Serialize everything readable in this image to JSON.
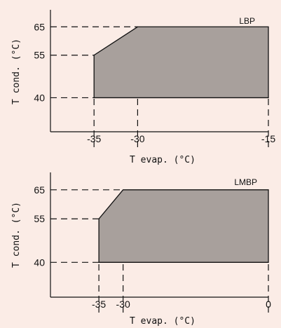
{
  "chart_data": [
    {
      "type": "area",
      "tag": "LBP",
      "xlabel": "T evap. (°C)",
      "ylabel": "T cond. (°C)",
      "x_ticks": [
        "-35",
        "-30",
        "-15"
      ],
      "y_ticks": [
        "40",
        "55",
        "65"
      ],
      "xlim": [
        -40,
        -15
      ],
      "ylim": [
        28,
        71
      ],
      "polygon": [
        {
          "x": -35,
          "y": 40
        },
        {
          "x": -35,
          "y": 55
        },
        {
          "x": -30,
          "y": 65
        },
        {
          "x": -15,
          "y": 65
        },
        {
          "x": -15,
          "y": 40
        }
      ],
      "fill_color": "#a8a09c"
    },
    {
      "type": "area",
      "tag": "LMBP",
      "xlabel": "T evap. (°C)",
      "ylabel": "T cond. (°C)",
      "x_ticks": [
        "-35",
        "-30",
        "0"
      ],
      "y_ticks": [
        "40",
        "55",
        "65"
      ],
      "xlim": [
        -45,
        0
      ],
      "ylim": [
        28,
        71
      ],
      "polygon": [
        {
          "x": -35,
          "y": 40
        },
        {
          "x": -35,
          "y": 55
        },
        {
          "x": -30,
          "y": 65
        },
        {
          "x": 0,
          "y": 65
        },
        {
          "x": 0,
          "y": 40
        }
      ],
      "fill_color": "#a8a09c"
    }
  ]
}
